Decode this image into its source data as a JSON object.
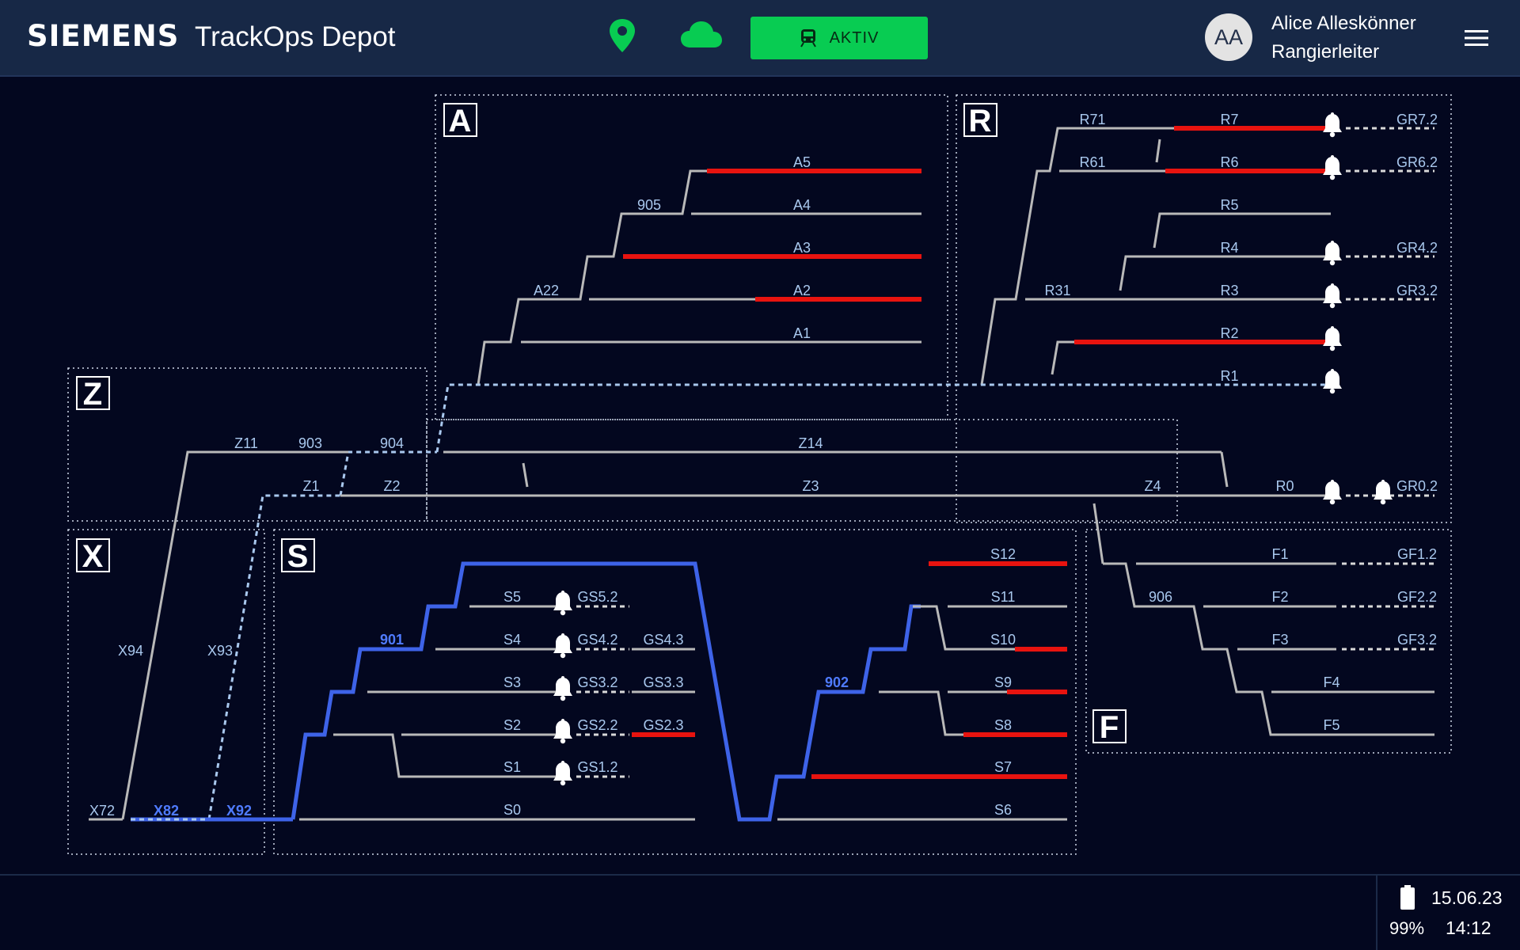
{
  "header": {
    "brand": "SIEMENS",
    "app_title": "TrackOps Depot",
    "status_label": "AKTIV",
    "avatar_initials": "AA",
    "user_name": "Alice Alleskönner",
    "user_role": "Rangierleiter",
    "icons": [
      "location-pin-icon",
      "cloud-icon",
      "train-icon",
      "hamburger-menu-icon"
    ],
    "colors": {
      "status": "#08cc52",
      "location": "#08cc52",
      "cloud": "#08cc52"
    }
  },
  "footer": {
    "date": "15.06.23",
    "time": "14:12",
    "battery": "99%",
    "icons": [
      "battery-icon"
    ]
  },
  "plan": {
    "colors": {
      "track": "#b9b9b9",
      "occupied": "#e8130f",
      "route": "#3e63e8",
      "label": "#a9c8ee",
      "background": "#03071f"
    },
    "zones": {
      "A": "A",
      "R": "R",
      "Z": "Z",
      "X": "X",
      "S": "S",
      "F": "F"
    },
    "labels": {
      "A5": "A5",
      "A4": "A4",
      "A3": "A3",
      "A2": "A2",
      "A1": "A1",
      "A22": "A22",
      "n905": "905",
      "R71": "R71",
      "R7": "R7",
      "GR72": "GR7.2",
      "R61": "R61",
      "R6": "R6",
      "GR62": "GR6.2",
      "R5": "R5",
      "R4": "R4",
      "GR42": "GR4.2",
      "R31": "R31",
      "R3": "R3",
      "GR32": "GR3.2",
      "R2": "R2",
      "R1": "R1",
      "Z11": "Z11",
      "n903": "903",
      "n904": "904",
      "Z14": "Z14",
      "Z1": "Z1",
      "Z2": "Z2",
      "Z3": "Z3",
      "Z4": "Z4",
      "R0": "R0",
      "GR02": "GR0.2",
      "X94": "X94",
      "X93": "X93",
      "X72": "X72",
      "X82": "X82",
      "X92": "X92",
      "n901": "901",
      "n902": "902",
      "S5": "S5",
      "GS52": "GS5.2",
      "S4": "S4",
      "GS42": "GS4.2",
      "GS43": "GS4.3",
      "S3": "S3",
      "GS32": "GS3.2",
      "GS33": "GS3.3",
      "S2": "S2",
      "GS22": "GS2.2",
      "GS23": "GS2.3",
      "S1": "S1",
      "GS12": "GS1.2",
      "S0": "S0",
      "S12": "S12",
      "S11": "S11",
      "S10": "S10",
      "S9": "S9",
      "S8": "S8",
      "S7": "S7",
      "S6": "S6",
      "F1": "F1",
      "GF12": "GF1.2",
      "n906": "906",
      "F2": "F2",
      "GF22": "GF2.2",
      "F3": "F3",
      "GF32": "GF3.2",
      "F4": "F4",
      "F5": "F5"
    }
  }
}
